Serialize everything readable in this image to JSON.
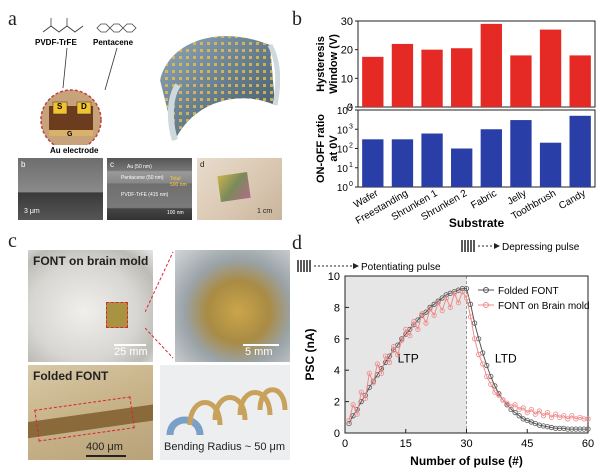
{
  "panels": {
    "a": {
      "letter": "a",
      "labels": {
        "pvdf": "PVDF-TrFE",
        "pentacene": "Pentacene",
        "s": "S",
        "d": "D",
        "g": "G",
        "au": "Au electrode",
        "sem_b": "b",
        "sem_c": "c",
        "sem_d": "d",
        "scale_b": "3 μm",
        "scale_c": "100 nm",
        "scale_d": "1 cm",
        "layer1": "Au (50 nm)",
        "layer2": "Pentacene (50 nm)",
        "layer3": "PVDF-TrFE (415 nm)",
        "total": "Total 500 nm"
      }
    },
    "b": {
      "letter": "b"
    },
    "c": {
      "letter": "c",
      "labels": {
        "brain": "FONT on brain mold",
        "folded": "Folded FONT",
        "scale1": "25 mm",
        "scale2": "5 mm",
        "scale3": "400 μm",
        "bending": "Bending Radius ~ 50 μm"
      }
    },
    "d": {
      "letter": "d"
    }
  },
  "colors": {
    "red_bar": "#e52a25",
    "blue_bar": "#2a3ea8",
    "folded": "#555555",
    "brain": "#f08a8a"
  },
  "chart_data": [
    {
      "type": "bar",
      "panel": "b-top",
      "categories": [
        "Wafer",
        "Freestanding",
        "Shrunken 1",
        "Shrunken 2",
        "Fabric",
        "Jelly",
        "Toothbrush",
        "Candy"
      ],
      "values": [
        17.5,
        22,
        20,
        20.5,
        29,
        18,
        27,
        18
      ],
      "ylabel": "Hysteresis Window (V)",
      "ylim": [
        0,
        30
      ],
      "yticks": [
        "0",
        "10",
        "20",
        "30"
      ]
    },
    {
      "type": "bar",
      "panel": "b-bottom",
      "categories": [
        "Wafer",
        "Freestanding",
        "Shrunken 1",
        "Shrunken 2",
        "Fabric",
        "Jelly",
        "Toothbrush",
        "Candy"
      ],
      "values": [
        300,
        300,
        600,
        100,
        1000,
        3000,
        200,
        5000
      ],
      "ylabel": "ON-OFF ratio at 0V",
      "xlabel": "Substrate",
      "yscale": "log",
      "ylim_exp": [
        0,
        4
      ],
      "yticks": [
        "10",
        "10",
        "10",
        "10",
        "10"
      ],
      "ytick_exps": [
        "0",
        "1",
        "2",
        "3",
        "4"
      ]
    },
    {
      "type": "line",
      "panel": "d",
      "xlabel": "Number of pulse (#)",
      "ylabel": "PSC (nA)",
      "xlim": [
        0,
        60
      ],
      "ylim": [
        0,
        10
      ],
      "xticks": [
        "0",
        "15",
        "30",
        "45",
        "60"
      ],
      "yticks": [
        "0",
        "2",
        "4",
        "6",
        "8",
        "10"
      ],
      "regions": [
        "LTP",
        "LTD"
      ],
      "pulse_labels": [
        "Potentiating pulse",
        "Depressing pulse"
      ],
      "series": [
        {
          "name": "Folded FONT",
          "x": [
            1,
            2,
            3,
            4,
            5,
            6,
            7,
            8,
            9,
            10,
            11,
            12,
            13,
            14,
            15,
            16,
            17,
            18,
            19,
            20,
            21,
            22,
            23,
            24,
            25,
            26,
            27,
            28,
            29,
            30,
            31,
            32,
            33,
            34,
            35,
            36,
            37,
            38,
            39,
            40,
            41,
            42,
            43,
            44,
            45,
            46,
            47,
            48,
            49,
            50,
            51,
            52,
            53,
            54,
            55,
            56,
            57,
            58,
            59,
            60
          ],
          "values": [
            0.6,
            1.1,
            1.5,
            2.0,
            2.4,
            2.9,
            3.3,
            3.7,
            4.1,
            4.5,
            4.9,
            5.3,
            5.6,
            6.0,
            6.3,
            6.6,
            6.9,
            7.2,
            7.5,
            7.7,
            8.0,
            8.2,
            8.4,
            8.6,
            8.8,
            8.9,
            9.0,
            9.1,
            9.2,
            9.2,
            8.2,
            7.0,
            6.0,
            5.1,
            4.3,
            3.6,
            3.0,
            2.5,
            2.1,
            1.8,
            1.5,
            1.3,
            1.1,
            0.9,
            0.8,
            0.7,
            0.6,
            0.5,
            0.45,
            0.4,
            0.35,
            0.3,
            0.3,
            0.3,
            0.25,
            0.25,
            0.25,
            0.25,
            0.25,
            0.25
          ]
        },
        {
          "name": "FONT on Brain mold",
          "x": [
            1,
            2,
            3,
            4,
            5,
            6,
            7,
            8,
            9,
            10,
            11,
            12,
            13,
            14,
            15,
            16,
            17,
            18,
            19,
            20,
            21,
            22,
            23,
            24,
            25,
            26,
            27,
            28,
            29,
            30,
            31,
            32,
            33,
            34,
            35,
            36,
            37,
            38,
            39,
            40,
            41,
            42,
            43,
            44,
            45,
            46,
            47,
            48,
            49,
            50,
            51,
            52,
            53,
            54,
            55,
            56,
            57,
            58,
            59,
            60
          ],
          "values": [
            0.8,
            1.8,
            1.2,
            2.6,
            2.2,
            3.8,
            3.2,
            4.4,
            3.8,
            4.9,
            4.5,
            5.5,
            5.0,
            5.9,
            6.6,
            6.2,
            7.1,
            6.6,
            7.6,
            7.0,
            7.9,
            7.5,
            8.3,
            7.8,
            8.6,
            8.0,
            8.9,
            8.3,
            9.0,
            8.6,
            7.4,
            6.0,
            5.0,
            4.4,
            3.6,
            3.1,
            2.6,
            2.4,
            2.1,
            1.9,
            1.7,
            1.8,
            1.5,
            1.6,
            1.3,
            1.5,
            1.2,
            1.4,
            1.1,
            1.3,
            1.0,
            1.2,
            1.0,
            1.1,
            0.9,
            1.1,
            0.9,
            1.0,
            0.9,
            0.9
          ]
        }
      ]
    }
  ]
}
